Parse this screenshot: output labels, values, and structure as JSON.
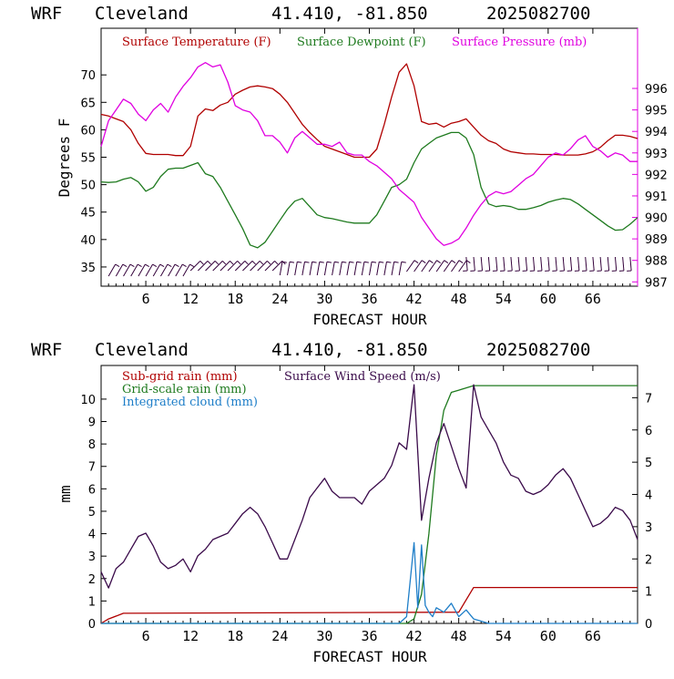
{
  "colors": {
    "temperature": "#b00000",
    "dewpoint": "#1e7a1e",
    "pressure": "#e000e0",
    "wind_barb": "#33003a",
    "subgrid_rain": "#b00000",
    "gridscale_rain": "#1e7a1e",
    "cloud": "#1e7ec8",
    "wind_speed": "#3a0a4a"
  },
  "chart_data": [
    {
      "type": "line",
      "header": {
        "model": "WRF",
        "station": "Cleveland",
        "coords": "41.410, -81.850",
        "run": "2025082700"
      },
      "xlabel": "FORECAST HOUR",
      "ylabel": "Degrees F",
      "xlim": [
        0,
        72
      ],
      "ylim": [
        31.5,
        78.5
      ],
      "y2lim": [
        986.8,
        998.8
      ],
      "xticks": [
        6,
        12,
        18,
        24,
        30,
        36,
        42,
        48,
        54,
        60,
        66
      ],
      "xtick_labels": [
        "6",
        "12",
        "18",
        "24",
        "30",
        "36",
        "42",
        "48",
        "54",
        "60",
        "66"
      ],
      "yticks": [
        35,
        40,
        45,
        50,
        55,
        60,
        65,
        70
      ],
      "y2ticks": [
        987,
        988,
        989,
        990,
        991,
        992,
        993,
        994,
        995,
        996
      ],
      "legend_position": "top",
      "series": [
        {
          "name": "Surface Temperature (F)",
          "axis": "left",
          "color_key": "temperature",
          "x": [
            0,
            1,
            2,
            3,
            4,
            5,
            6,
            7,
            8,
            9,
            10,
            11,
            12,
            13,
            14,
            15,
            16,
            17,
            18,
            19,
            20,
            21,
            22,
            23,
            24,
            25,
            26,
            27,
            28,
            29,
            30,
            31,
            32,
            33,
            34,
            35,
            36,
            37,
            38,
            39,
            40,
            41,
            42,
            43,
            44,
            45,
            46,
            47,
            48,
            49,
            50,
            51,
            52,
            53,
            54,
            55,
            56,
            57,
            58,
            59,
            60,
            61,
            62,
            63,
            64,
            65,
            66,
            67,
            68,
            69,
            70,
            71,
            72
          ],
          "y": [
            62.8,
            62.5,
            62.0,
            61.5,
            60.0,
            57.5,
            55.7,
            55.5,
            55.5,
            55.5,
            55.3,
            55.3,
            57.0,
            62.5,
            63.8,
            63.5,
            64.5,
            65.0,
            66.5,
            67.2,
            67.8,
            68.0,
            67.8,
            67.5,
            66.5,
            65.0,
            63.0,
            61.0,
            59.5,
            58.2,
            57.0,
            56.5,
            56.0,
            55.5,
            55.0,
            55.0,
            55.0,
            56.5,
            61.0,
            66.0,
            70.5,
            72.0,
            68.0,
            61.5,
            61.0,
            61.2,
            60.5,
            61.2,
            61.5,
            62.0,
            60.5,
            59.0,
            58.0,
            57.5,
            56.5,
            56.0,
            55.8,
            55.6,
            55.6,
            55.5,
            55.5,
            55.5,
            55.4,
            55.4,
            55.4,
            55.6,
            56.0,
            56.8,
            58.0,
            59.0,
            59.0,
            58.8,
            58.4
          ]
        },
        {
          "name": "Surface Dewpoint (F)",
          "axis": "left",
          "color_key": "dewpoint",
          "x": [
            0,
            1,
            2,
            3,
            4,
            5,
            6,
            7,
            8,
            9,
            10,
            11,
            12,
            13,
            14,
            15,
            16,
            17,
            18,
            19,
            20,
            21,
            22,
            23,
            24,
            25,
            26,
            27,
            28,
            29,
            30,
            31,
            32,
            33,
            34,
            35,
            36,
            37,
            38,
            39,
            40,
            41,
            42,
            43,
            44,
            45,
            46,
            47,
            48,
            49,
            50,
            51,
            52,
            53,
            54,
            55,
            56,
            57,
            58,
            59,
            60,
            61,
            62,
            63,
            64,
            65,
            66,
            67,
            68,
            69,
            70,
            71,
            72
          ],
          "y": [
            50.5,
            50.4,
            50.5,
            51.0,
            51.3,
            50.5,
            48.8,
            49.5,
            51.5,
            52.8,
            53.0,
            53.0,
            53.5,
            54.0,
            52.0,
            51.5,
            49.5,
            47.0,
            44.5,
            42.0,
            39.0,
            38.5,
            39.5,
            41.5,
            43.5,
            45.5,
            47.0,
            47.5,
            46.0,
            44.5,
            44.0,
            43.8,
            43.5,
            43.2,
            43.0,
            43.0,
            43.0,
            44.5,
            47.0,
            49.5,
            50.0,
            51.0,
            54.0,
            56.5,
            57.5,
            58.5,
            59.0,
            59.5,
            59.5,
            58.5,
            55.5,
            49.5,
            46.5,
            46.0,
            46.2,
            46.0,
            45.5,
            45.5,
            45.8,
            46.2,
            46.8,
            47.2,
            47.5,
            47.3,
            46.5,
            45.5,
            44.5,
            43.5,
            42.5,
            41.7,
            41.8,
            42.8,
            44.0
          ]
        },
        {
          "name": "Surface Pressure (mb)",
          "axis": "right",
          "color_key": "pressure",
          "x": [
            0,
            1,
            2,
            3,
            4,
            5,
            6,
            7,
            8,
            9,
            10,
            11,
            12,
            13,
            14,
            15,
            16,
            17,
            18,
            19,
            20,
            21,
            22,
            23,
            24,
            25,
            26,
            27,
            28,
            29,
            30,
            31,
            32,
            33,
            34,
            35,
            36,
            37,
            38,
            39,
            40,
            41,
            42,
            43,
            44,
            45,
            46,
            47,
            48,
            49,
            50,
            51,
            52,
            53,
            54,
            55,
            56,
            57,
            58,
            59,
            60,
            61,
            62,
            63,
            64,
            65,
            66,
            67,
            68,
            69,
            70,
            71,
            72
          ],
          "y": [
            993.3,
            994.5,
            995.0,
            995.5,
            995.3,
            994.8,
            994.5,
            995.0,
            995.3,
            994.9,
            995.6,
            996.1,
            996.5,
            997.0,
            997.2,
            997.0,
            997.1,
            996.3,
            995.2,
            995.0,
            994.9,
            994.5,
            993.8,
            993.8,
            993.5,
            993.0,
            993.7,
            994.0,
            993.7,
            993.4,
            993.4,
            993.3,
            993.5,
            993.0,
            992.9,
            992.9,
            992.6,
            992.4,
            992.1,
            991.8,
            991.3,
            991.0,
            990.7,
            990.0,
            989.5,
            989.0,
            988.7,
            988.8,
            989.0,
            989.5,
            990.1,
            990.6,
            991.0,
            991.2,
            991.1,
            991.2,
            991.5,
            991.8,
            992.0,
            992.4,
            992.8,
            993.0,
            992.9,
            993.2,
            993.6,
            993.8,
            993.3,
            993.1,
            992.8,
            993.0,
            992.9,
            992.6,
            992.6
          ]
        }
      ]
    },
    {
      "type": "line",
      "header": {
        "model": "WRF",
        "station": "Cleveland",
        "coords": "41.410, -81.850",
        "run": "2025082700"
      },
      "xlabel": "FORECAST HOUR",
      "ylabel": "mm",
      "xlim": [
        0,
        72
      ],
      "ylim": [
        0,
        11.5
      ],
      "y2lim": [
        0,
        8.0
      ],
      "xticks": [
        6,
        12,
        18,
        24,
        30,
        36,
        42,
        48,
        54,
        60,
        66
      ],
      "xtick_labels": [
        "6",
        "12",
        "18",
        "24",
        "30",
        "36",
        "42",
        "48",
        "54",
        "60",
        "66"
      ],
      "yticks": [
        0,
        1,
        2,
        3,
        4,
        5,
        6,
        7,
        8,
        9,
        10
      ],
      "y2ticks": [
        0,
        1,
        2,
        3,
        4,
        5,
        6,
        7
      ],
      "legend_position": "top-left",
      "series": [
        {
          "name": "Sub-grid rain (mm)",
          "axis": "left",
          "color_key": "subgrid_rain",
          "x": [
            0,
            1,
            3,
            48,
            50,
            72
          ],
          "y": [
            0.0,
            0.2,
            0.45,
            0.5,
            1.6,
            1.6
          ]
        },
        {
          "name": "Grid-scale rain (mm)",
          "axis": "left",
          "color_key": "gridscale_rain",
          "x": [
            0,
            41,
            42,
            43,
            44,
            45,
            46,
            47,
            48,
            49,
            50,
            51,
            72
          ],
          "y": [
            0.0,
            0.0,
            0.2,
            1.3,
            4.0,
            7.5,
            9.5,
            10.3,
            10.4,
            10.5,
            10.6,
            10.6,
            10.6
          ]
        },
        {
          "name": "Integrated cloud (mm)",
          "axis": "left",
          "color_key": "cloud",
          "x": [
            0,
            40,
            41,
            42,
            42.5,
            43,
            43.5,
            44,
            44.5,
            45,
            46,
            47,
            48,
            49,
            50,
            51,
            52,
            72
          ],
          "y": [
            0.0,
            0.0,
            0.3,
            3.6,
            0.7,
            3.5,
            0.8,
            0.5,
            0.3,
            0.7,
            0.5,
            0.9,
            0.3,
            0.6,
            0.2,
            0.1,
            0.0,
            0.0
          ]
        },
        {
          "name": "Surface Wind Speed (m/s)",
          "axis": "right",
          "color_key": "wind_speed",
          "x": [
            0,
            1,
            2,
            3,
            4,
            5,
            6,
            7,
            8,
            9,
            10,
            11,
            12,
            13,
            14,
            15,
            16,
            17,
            18,
            19,
            20,
            21,
            22,
            23,
            24,
            25,
            26,
            27,
            28,
            29,
            30,
            31,
            32,
            33,
            34,
            35,
            36,
            37,
            38,
            39,
            40,
            41,
            42,
            43,
            44,
            45,
            46,
            47,
            48,
            49,
            50,
            51,
            52,
            53,
            54,
            55,
            56,
            57,
            58,
            59,
            60,
            61,
            62,
            63,
            64,
            65,
            66,
            67,
            68,
            69,
            70,
            71,
            72
          ],
          "y": [
            1.6,
            1.1,
            1.7,
            1.9,
            2.3,
            2.7,
            2.8,
            2.4,
            1.9,
            1.7,
            1.8,
            2.0,
            1.6,
            2.1,
            2.3,
            2.6,
            2.7,
            2.8,
            3.1,
            3.4,
            3.6,
            3.4,
            3.0,
            2.5,
            2.0,
            2.0,
            2.6,
            3.2,
            3.9,
            4.2,
            4.5,
            4.1,
            3.9,
            3.9,
            3.9,
            3.7,
            4.1,
            4.3,
            4.5,
            4.9,
            5.6,
            5.4,
            7.4,
            3.2,
            4.5,
            5.6,
            6.2,
            5.5,
            4.8,
            4.2,
            7.4,
            6.4,
            6.0,
            5.6,
            5.0,
            4.6,
            4.5,
            4.1,
            4.0,
            4.1,
            4.3,
            4.6,
            4.8,
            4.5,
            4.0,
            3.5,
            3.0,
            3.1,
            3.3,
            3.6,
            3.5,
            3.2,
            2.6
          ]
        }
      ]
    }
  ]
}
